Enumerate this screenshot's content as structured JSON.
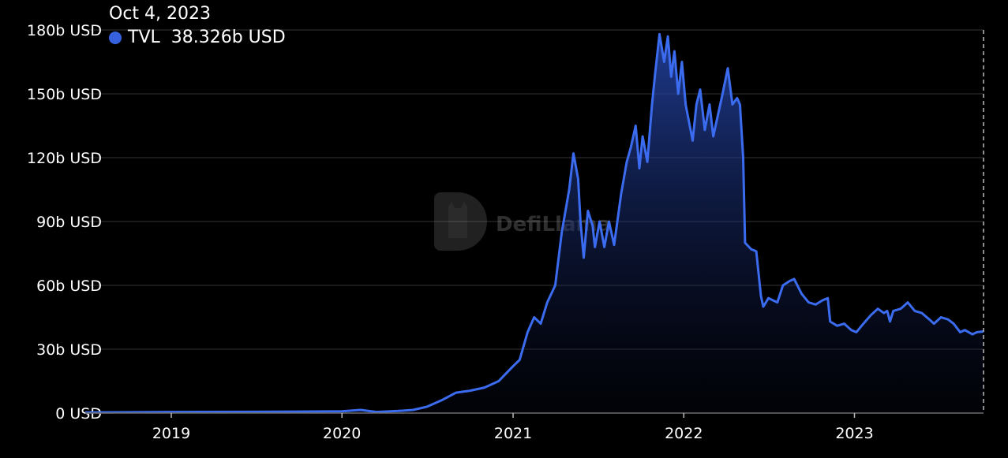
{
  "chart_data": {
    "type": "area",
    "title": "",
    "xlabel": "",
    "ylabel": "",
    "x_range": [
      "2018-07-01",
      "2023-10-04"
    ],
    "ylim": [
      0,
      180
    ],
    "y_ticks": [
      0,
      30,
      60,
      90,
      120,
      150,
      180
    ],
    "y_tick_labels": [
      "0 USD",
      "30b USD",
      "60b USD",
      "90b USD",
      "120b USD",
      "150b USD",
      "180b USD"
    ],
    "x_ticks": [
      "2019-01-01",
      "2020-01-01",
      "2021-01-01",
      "2022-01-01",
      "2023-01-01"
    ],
    "x_tick_labels": [
      "2019",
      "2020",
      "2021",
      "2022",
      "2023"
    ],
    "grid": "horizontal",
    "line_color": "#3b6cf0",
    "series": [
      {
        "name": "TVL",
        "unit": "b USD",
        "points": [
          [
            "2018-07-01",
            0.3
          ],
          [
            "2019-01-01",
            0.5
          ],
          [
            "2019-07-01",
            0.6
          ],
          [
            "2020-01-01",
            0.8
          ],
          [
            "2020-02-10",
            1.5
          ],
          [
            "2020-03-15",
            0.5
          ],
          [
            "2020-05-01",
            1
          ],
          [
            "2020-06-01",
            1.5
          ],
          [
            "2020-07-01",
            3
          ],
          [
            "2020-08-01",
            6
          ],
          [
            "2020-09-01",
            9.6
          ],
          [
            "2020-10-01",
            10.5
          ],
          [
            "2020-11-01",
            12
          ],
          [
            "2020-12-01",
            15
          ],
          [
            "2021-01-01",
            22
          ],
          [
            "2021-01-15",
            25
          ],
          [
            "2021-02-01",
            38
          ],
          [
            "2021-02-15",
            45
          ],
          [
            "2021-03-01",
            42
          ],
          [
            "2021-03-15",
            52
          ],
          [
            "2021-04-01",
            60
          ],
          [
            "2021-04-15",
            85
          ],
          [
            "2021-05-01",
            105
          ],
          [
            "2021-05-10",
            122
          ],
          [
            "2021-05-20",
            110
          ],
          [
            "2021-05-25",
            90
          ],
          [
            "2021-06-01",
            73
          ],
          [
            "2021-06-10",
            95
          ],
          [
            "2021-06-20",
            88
          ],
          [
            "2021-06-25",
            78
          ],
          [
            "2021-07-05",
            90
          ],
          [
            "2021-07-15",
            78
          ],
          [
            "2021-07-25",
            90
          ],
          [
            "2021-08-05",
            79
          ],
          [
            "2021-08-20",
            103
          ],
          [
            "2021-09-01",
            118
          ],
          [
            "2021-09-10",
            125
          ],
          [
            "2021-09-20",
            135
          ],
          [
            "2021-09-28",
            115
          ],
          [
            "2021-10-05",
            130
          ],
          [
            "2021-10-15",
            118
          ],
          [
            "2021-10-25",
            145
          ],
          [
            "2021-11-01",
            160
          ],
          [
            "2021-11-10",
            178
          ],
          [
            "2021-11-20",
            165
          ],
          [
            "2021-11-28",
            177
          ],
          [
            "2021-12-05",
            158
          ],
          [
            "2021-12-12",
            170
          ],
          [
            "2021-12-20",
            150
          ],
          [
            "2021-12-28",
            165
          ],
          [
            "2022-01-05",
            145
          ],
          [
            "2022-01-20",
            128
          ],
          [
            "2022-01-28",
            145
          ],
          [
            "2022-02-05",
            152
          ],
          [
            "2022-02-15",
            133
          ],
          [
            "2022-02-25",
            145
          ],
          [
            "2022-03-05",
            130
          ],
          [
            "2022-03-15",
            140
          ],
          [
            "2022-03-25",
            150
          ],
          [
            "2022-04-05",
            162
          ],
          [
            "2022-04-15",
            145
          ],
          [
            "2022-04-25",
            148
          ],
          [
            "2022-05-01",
            145
          ],
          [
            "2022-05-08",
            120
          ],
          [
            "2022-05-12",
            80
          ],
          [
            "2022-05-25",
            77
          ],
          [
            "2022-06-05",
            76
          ],
          [
            "2022-06-15",
            55
          ],
          [
            "2022-06-20",
            50
          ],
          [
            "2022-07-01",
            54
          ],
          [
            "2022-07-20",
            52
          ],
          [
            "2022-08-01",
            60
          ],
          [
            "2022-08-15",
            62
          ],
          [
            "2022-08-25",
            63
          ],
          [
            "2022-09-10",
            56
          ],
          [
            "2022-09-25",
            52
          ],
          [
            "2022-10-10",
            51
          ],
          [
            "2022-10-25",
            53
          ],
          [
            "2022-11-05",
            54
          ],
          [
            "2022-11-10",
            43
          ],
          [
            "2022-11-25",
            41
          ],
          [
            "2022-12-10",
            42
          ],
          [
            "2022-12-25",
            39
          ],
          [
            "2023-01-05",
            38
          ],
          [
            "2023-01-20",
            42
          ],
          [
            "2023-02-05",
            46
          ],
          [
            "2023-02-20",
            49
          ],
          [
            "2023-03-05",
            47
          ],
          [
            "2023-03-12",
            48
          ],
          [
            "2023-03-18",
            43
          ],
          [
            "2023-03-25",
            48
          ],
          [
            "2023-04-10",
            49
          ],
          [
            "2023-04-25",
            52
          ],
          [
            "2023-05-10",
            48
          ],
          [
            "2023-05-25",
            47
          ],
          [
            "2023-06-10",
            44
          ],
          [
            "2023-06-20",
            42
          ],
          [
            "2023-07-05",
            45
          ],
          [
            "2023-07-20",
            44
          ],
          [
            "2023-08-01",
            42
          ],
          [
            "2023-08-15",
            38
          ],
          [
            "2023-08-25",
            39
          ],
          [
            "2023-09-10",
            37
          ],
          [
            "2023-09-20",
            38
          ],
          [
            "2023-10-04",
            38.326
          ]
        ]
      }
    ]
  },
  "tooltip": {
    "date": "Oct 4, 2023",
    "series_name": "TVL",
    "value": "38.326b USD",
    "dot_color": "#3662e0"
  },
  "watermark": {
    "text": "DefiLlama",
    "icon": "llama-logo-icon"
  }
}
